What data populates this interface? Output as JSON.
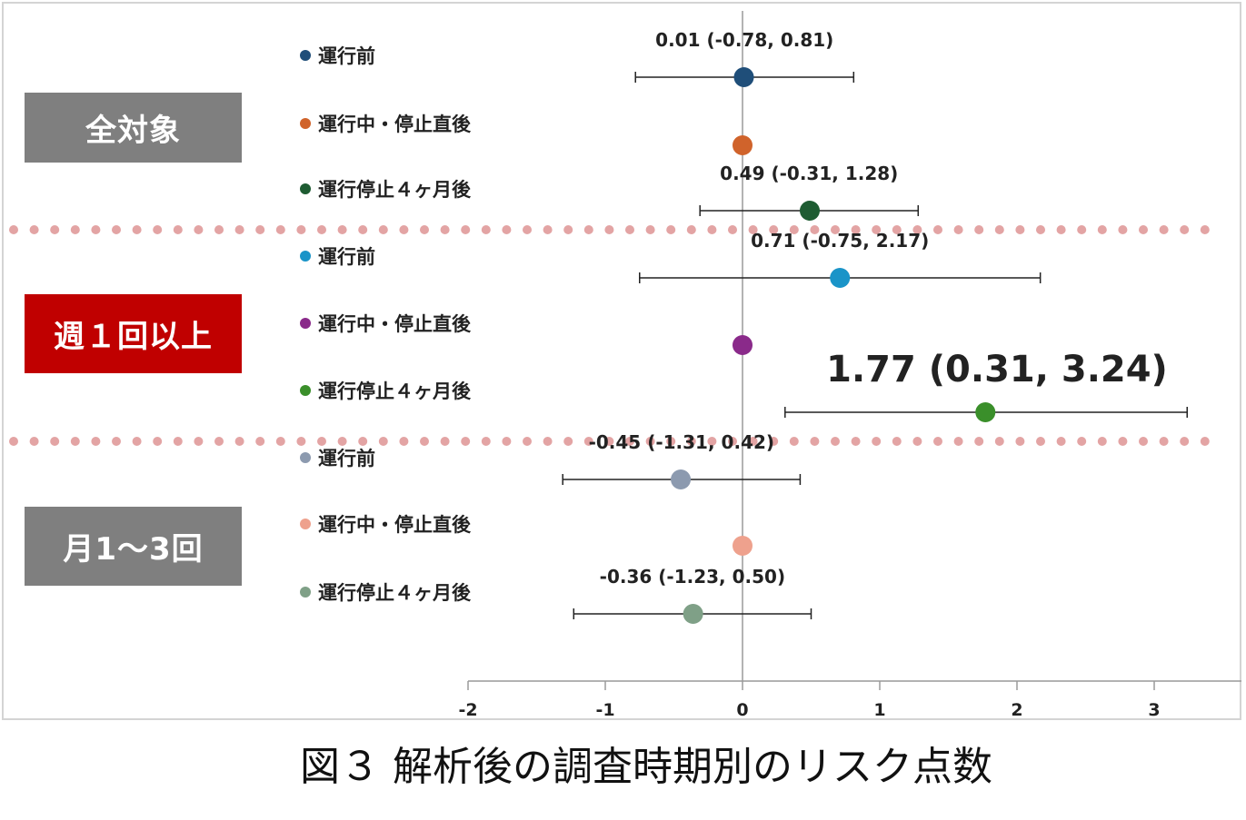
{
  "caption": "図３ 解析後の調査時期別のリスク点数",
  "groups": [
    {
      "label": "全対象",
      "color": "#7f7f7f"
    },
    {
      "label": "週１回以上",
      "color": "#c00000"
    },
    {
      "label": "月1～3回",
      "color": "#7f7f7f"
    }
  ],
  "chart_data": {
    "type": "scatter",
    "title": "",
    "xlabel": "",
    "ylabel": "",
    "xlim": [
      -2,
      3.3
    ],
    "xticks": [
      "-2",
      "-1",
      "0",
      "1",
      "2",
      "3"
    ],
    "separator_color": "#e3a4a4",
    "rows": [
      {
        "group": 0,
        "label": "運行前",
        "value": 0.01,
        "ci": [
          -0.78,
          0.81
        ],
        "ci_label": "0.01 (-0.78, 0.81)",
        "color": "#1f4e79",
        "dot": "#1f4e79"
      },
      {
        "group": 0,
        "label": "運行中・停止直後",
        "value": 0,
        "ci": null,
        "ci_label": "",
        "color": "#d0632b",
        "dot": "#d0632b"
      },
      {
        "group": 0,
        "label": "運行停止４ヶ月後",
        "value": 0.49,
        "ci": [
          -0.31,
          1.28
        ],
        "ci_label": "0.49 (-0.31, 1.28)",
        "color": "#1e5c32",
        "dot": "#1e5c32"
      },
      {
        "group": 1,
        "label": "運行前",
        "value": 0.71,
        "ci": [
          -0.75,
          2.17
        ],
        "ci_label": "0.71 (-0.75, 2.17)",
        "color": "#1a94c8",
        "dot": "#1a94c8"
      },
      {
        "group": 1,
        "label": "運行中・停止直後",
        "value": 0,
        "ci": null,
        "ci_label": "",
        "color": "#8a2a8a",
        "dot": "#8a2a8a"
      },
      {
        "group": 1,
        "label": "運行停止４ヶ月後",
        "value": 1.77,
        "ci": [
          0.31,
          3.24
        ],
        "ci_label": "1.77 (0.31, 3.24)",
        "color": "#3a8f2a",
        "dot": "#3a8f2a",
        "highlight": true
      },
      {
        "group": 2,
        "label": "運行前",
        "value": -0.45,
        "ci": [
          -1.31,
          0.42
        ],
        "ci_label": "-0.45 (-1.31, 0.42)",
        "color": "#8c9aaf",
        "dot": "#8c9aaf"
      },
      {
        "group": 2,
        "label": "運行中・停止直後",
        "value": 0,
        "ci": null,
        "ci_label": "",
        "color": "#eea18d",
        "dot": "#eea18d"
      },
      {
        "group": 2,
        "label": "運行停止４ヶ月後",
        "value": -0.36,
        "ci": [
          -1.23,
          0.5
        ],
        "ci_label": "-0.36 (-1.23, 0.50)",
        "color": "#7fa087",
        "dot": "#7fa087"
      }
    ]
  }
}
